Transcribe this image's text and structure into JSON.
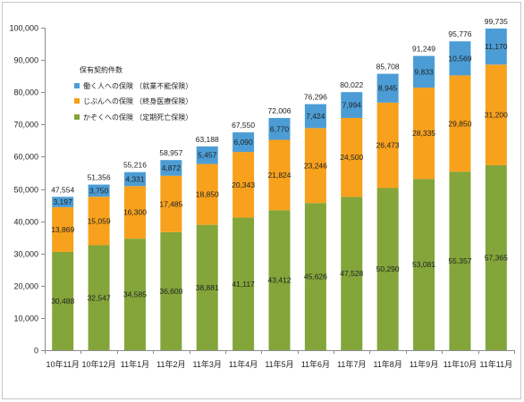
{
  "chart_data": {
    "type": "bar",
    "stacked": true,
    "categories": [
      "10年11月",
      "10年12月",
      "11年1月",
      "11年2月",
      "11年3月",
      "11年4月",
      "11年5月",
      "11年6月",
      "11年7月",
      "11年8月",
      "11年9月",
      "11年10月",
      "11年11月"
    ],
    "series": [
      {
        "name": "かぞくへの保険 （定期死亡保険）",
        "color": "#83a53a",
        "values": [
          30488,
          32547,
          34585,
          36600,
          38881,
          41117,
          43412,
          45626,
          47528,
          50290,
          53081,
          55357,
          57365
        ]
      },
      {
        "name": "じぶんへの保険 （終身医療保険）",
        "color": "#f7a11c",
        "values": [
          13869,
          15059,
          16300,
          17485,
          18850,
          20343,
          21824,
          23246,
          24500,
          26473,
          28335,
          29850,
          31200
        ]
      },
      {
        "name": "働く人への保険 （就業不能保険）",
        "color": "#4c9dd5",
        "values": [
          3197,
          3750,
          4331,
          4872,
          5457,
          6090,
          6770,
          7424,
          7994,
          8945,
          9833,
          10569,
          11170
        ]
      }
    ],
    "totals": [
      47554,
      51356,
      55216,
      58957,
      63188,
      67550,
      72006,
      76296,
      80022,
      85708,
      91249,
      95776,
      99735
    ],
    "legend_title": "保有契約件数",
    "legend_position": "top-left",
    "ylim": [
      0,
      100000
    ],
    "yticks": [
      0,
      10000,
      20000,
      30000,
      40000,
      50000,
      60000,
      70000,
      80000,
      90000,
      100000
    ],
    "grid": false,
    "data_labels": true
  }
}
